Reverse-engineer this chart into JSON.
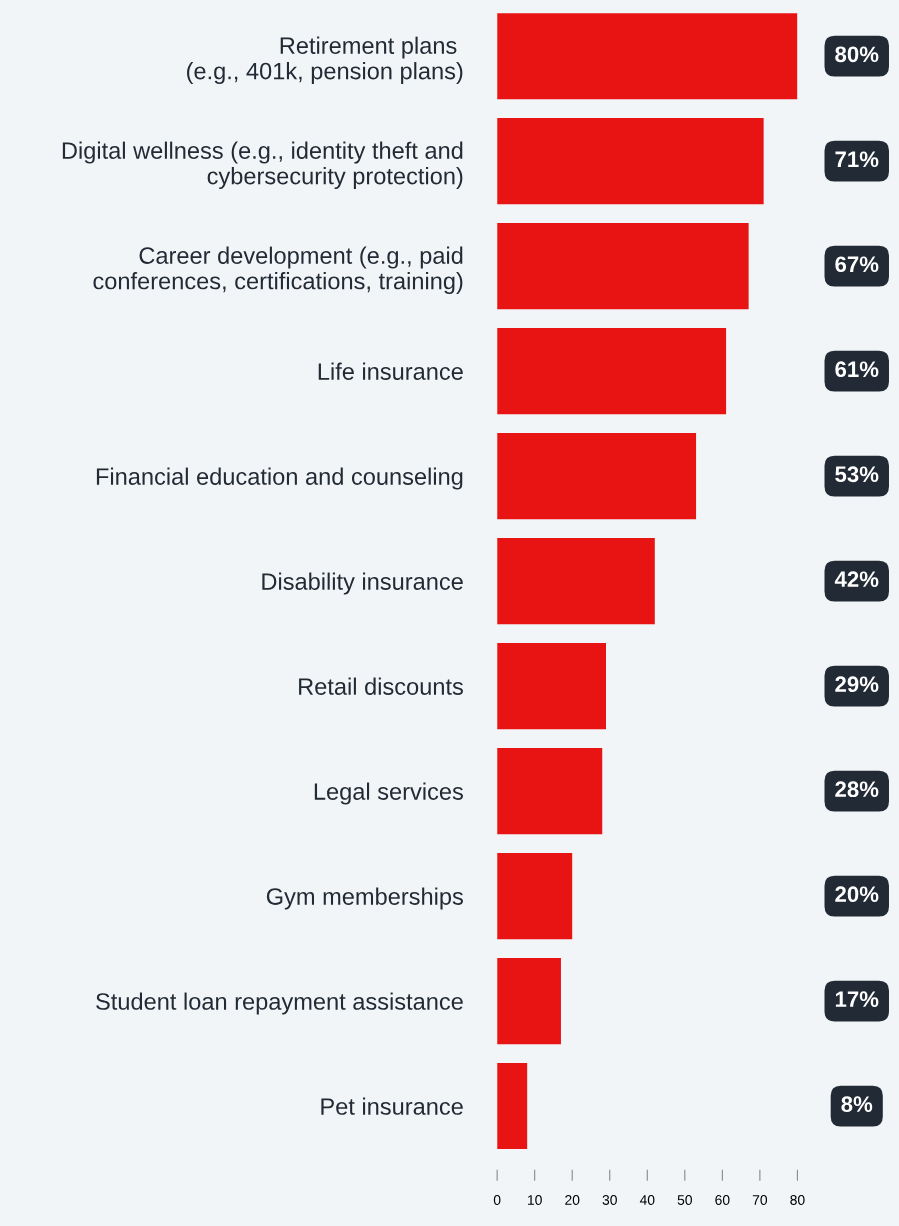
{
  "chart_data": {
    "type": "bar",
    "orientation": "horizontal",
    "categories": [
      "Retirement plans \n(e.g., 401k, pension plans)",
      "Digital wellness (e.g., identity theft and\ncybersecurity protection)",
      "Career development (e.g., paid\nconferences, certifications, training)",
      "Life insurance",
      "Financial education and counseling",
      "Disability insurance",
      "Retail discounts",
      "Legal services",
      "Gym memberships",
      "Student loan repayment assistance",
      "Pet insurance"
    ],
    "values": [
      80,
      71,
      67,
      61,
      53,
      42,
      29,
      28,
      20,
      17,
      8
    ],
    "value_labels": [
      "80%",
      "71%",
      "67%",
      "61%",
      "53%",
      "42%",
      "29%",
      "28%",
      "20%",
      "17%",
      "8%"
    ],
    "color": "#e81313",
    "xlim": [
      0,
      80
    ],
    "xticks": [
      0,
      10,
      20,
      30,
      40,
      50,
      60,
      70,
      80
    ],
    "grid": false,
    "legend": false
  }
}
